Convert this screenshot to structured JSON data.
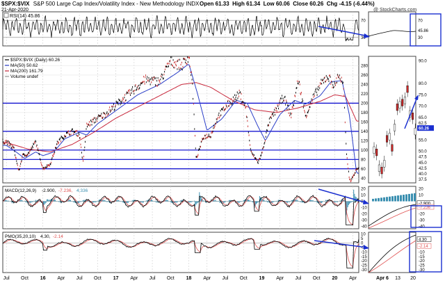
{
  "header": {
    "symbol": "$SPX:$VIX",
    "description": "S&P 500 Large Cap Index/Volatility Index - New Methodology INDX",
    "date": "21-Apr-2020",
    "ohlc": "Open 61.33  High 61.34  Low 60.06  Close 60.26  Chg -4.15 (-6.44%)",
    "watermark": "@ StockCharts.com"
  },
  "colors": {
    "price": "#000000",
    "ma50": "#2a3ec8",
    "ma200": "#c8283c",
    "hline": "#0000cc",
    "arrow": "#1a2fd0",
    "macd_hist": "#3a8fb0",
    "signal": "#e05050",
    "box": "#1a2fd0"
  },
  "chart_data": [
    {
      "type": "line",
      "panel": "rsi",
      "title": "RSI(14) 45.86",
      "ylim": [
        10,
        90
      ],
      "y_ticks": [
        30,
        70
      ],
      "series": [
        {
          "name": "RSI(14)",
          "last": 45.86
        }
      ],
      "overbought": 70,
      "oversold": 30,
      "right_inset": {
        "labels": [
          "45.86",
          "70",
          "30"
        ]
      }
    },
    {
      "type": "line",
      "panel": "price",
      "title": "$SPX:$VIX (Daily) 60.26",
      "series": [
        {
          "name": "$SPX:$VIX (Daily)",
          "last": 60.26
        },
        {
          "name": "MA(50)",
          "last": 50.62
        },
        {
          "name": "MA(200)",
          "last": 161.79
        },
        {
          "name": "Volume undef",
          "last": null
        }
      ],
      "legend_lines": [
        "$SPX:$VIX (Daily) 60.26",
        "MA(50) 50.62",
        "MA(200) 161.79",
        "Volume undef"
      ],
      "y_axis_labels": [
        "280",
        "260",
        "240",
        "220",
        "200",
        "180",
        "160",
        "140",
        "120",
        "100",
        "80",
        "60",
        "40"
      ],
      "horizontal_levels": [
        200,
        140,
        100,
        80,
        60
      ],
      "price_path": [
        [
          2015.5,
          118
        ],
        [
          2015.6,
          104
        ],
        [
          2015.67,
          54
        ],
        [
          2015.72,
          88
        ],
        [
          2015.8,
          92
        ],
        [
          2015.9,
          118
        ],
        [
          2016.0,
          60
        ],
        [
          2016.1,
          70
        ],
        [
          2016.2,
          116
        ],
        [
          2016.3,
          132
        ],
        [
          2016.4,
          140
        ],
        [
          2016.5,
          134
        ],
        [
          2016.55,
          72
        ],
        [
          2016.6,
          152
        ],
        [
          2016.75,
          168
        ],
        [
          2016.85,
          176
        ],
        [
          2017.0,
          196
        ],
        [
          2017.2,
          222
        ],
        [
          2017.4,
          250
        ],
        [
          2017.6,
          246
        ],
        [
          2017.75,
          290
        ],
        [
          2017.9,
          280
        ],
        [
          2018.0,
          300
        ],
        [
          2018.05,
          240
        ],
        [
          2018.1,
          80
        ],
        [
          2018.2,
          128
        ],
        [
          2018.3,
          132
        ],
        [
          2018.4,
          172
        ],
        [
          2018.55,
          200
        ],
        [
          2018.7,
          220
        ],
        [
          2018.78,
          190
        ],
        [
          2018.85,
          96
        ],
        [
          2018.95,
          74
        ],
        [
          2019.0,
          92
        ],
        [
          2019.1,
          160
        ],
        [
          2019.3,
          214
        ],
        [
          2019.4,
          172
        ],
        [
          2019.5,
          250
        ],
        [
          2019.6,
          172
        ],
        [
          2019.7,
          210
        ],
        [
          2019.8,
          238
        ],
        [
          2019.9,
          258
        ],
        [
          2020.0,
          236
        ],
        [
          2020.05,
          262
        ],
        [
          2020.12,
          238
        ],
        [
          2020.16,
          94
        ],
        [
          2020.2,
          40
        ],
        [
          2020.22,
          34
        ],
        [
          2020.25,
          44
        ],
        [
          2020.28,
          52
        ],
        [
          2020.3,
          60.26
        ]
      ],
      "ma50_path": [
        [
          2015.5,
          110
        ],
        [
          2015.65,
          94
        ],
        [
          2015.75,
          82
        ],
        [
          2015.9,
          96
        ],
        [
          2016.0,
          88
        ],
        [
          2016.15,
          96
        ],
        [
          2016.3,
          124
        ],
        [
          2016.5,
          138
        ],
        [
          2016.6,
          132
        ],
        [
          2016.75,
          156
        ],
        [
          2017.0,
          184
        ],
        [
          2017.3,
          218
        ],
        [
          2017.6,
          240
        ],
        [
          2017.85,
          266
        ],
        [
          2018.0,
          284
        ],
        [
          2018.12,
          220
        ],
        [
          2018.25,
          142
        ],
        [
          2018.45,
          166
        ],
        [
          2018.65,
          206
        ],
        [
          2018.8,
          200
        ],
        [
          2018.95,
          150
        ],
        [
          2019.05,
          120
        ],
        [
          2019.25,
          176
        ],
        [
          2019.45,
          206
        ],
        [
          2019.6,
          198
        ],
        [
          2019.8,
          216
        ],
        [
          2019.95,
          246
        ],
        [
          2020.1,
          248
        ],
        [
          2020.2,
          176
        ],
        [
          2020.3,
          50.62
        ]
      ],
      "ma200_path": [
        [
          2015.5,
          116
        ],
        [
          2015.8,
          102
        ],
        [
          2016.1,
          96
        ],
        [
          2016.4,
          112
        ],
        [
          2016.7,
          138
        ],
        [
          2017.0,
          168
        ],
        [
          2017.3,
          192
        ],
        [
          2017.6,
          216
        ],
        [
          2017.9,
          240
        ],
        [
          2018.1,
          244
        ],
        [
          2018.3,
          234
        ],
        [
          2018.6,
          206
        ],
        [
          2018.9,
          186
        ],
        [
          2019.2,
          180
        ],
        [
          2019.5,
          190
        ],
        [
          2019.8,
          204
        ],
        [
          2020.0,
          218
        ],
        [
          2020.15,
          214
        ],
        [
          2020.3,
          161.79
        ]
      ],
      "right_inset": {
        "y_labels": [
          "90.0",
          "80.0",
          "75.0",
          "70.0",
          "65.0",
          "62.5",
          "60.0",
          "55.0",
          "50.0",
          "47.5",
          "45.0",
          "42.5",
          "40.0",
          "37.5"
        ],
        "x_labels": [
          "Apr 6",
          "13",
          "20"
        ],
        "last_label": "60.26"
      }
    },
    {
      "type": "line",
      "panel": "macd",
      "title": "MACD(12,26,9) -2.900, -7.236, 4.336",
      "legend_parts": [
        "MACD(12,26,9)",
        "-2.900,",
        "-7.236,",
        "4.336"
      ],
      "series": [
        {
          "name": "MACD",
          "last": -2.9
        },
        {
          "name": "Signal",
          "last": -7.236
        },
        {
          "name": "Histogram",
          "last": 4.336
        }
      ],
      "y_ticks": [
        "20",
        "10",
        "0",
        "-10",
        "-20",
        "-30",
        "-40"
      ],
      "right_inset": {
        "y_labels": [
          "20",
          "10",
          "-2.900",
          "-7.236",
          "-20",
          "-30",
          "-40"
        ]
      }
    },
    {
      "type": "line",
      "panel": "pmo",
      "title": "PMO(35,20,10) 4.30, -2.14",
      "legend_parts": [
        "PMO(35,20,10)",
        "4.30,",
        "-2.14"
      ],
      "series": [
        {
          "name": "PMO",
          "last": 4.3
        },
        {
          "name": "Signal",
          "last": -2.14
        }
      ],
      "y_ticks": [
        "10",
        "5",
        "0",
        "-5",
        "-10",
        "-15",
        "-20",
        "-25",
        "-30"
      ],
      "right_inset": {
        "y_labels": [
          "4.30",
          "-2.14",
          "-10",
          "-15",
          "-20",
          "-25",
          "-30"
        ]
      }
    }
  ],
  "x_axis": {
    "labels": [
      "Jul",
      "Oct",
      "16",
      "Apr",
      "Jul",
      "Oct",
      "17",
      "Apr",
      "Jul",
      "Oct",
      "18",
      "Apr",
      "Jul",
      "Oct",
      "19",
      "Apr",
      "Jul",
      "Oct",
      "20",
      "Apr"
    ],
    "right_labels": [
      "Apr 6",
      "13",
      "20"
    ]
  }
}
